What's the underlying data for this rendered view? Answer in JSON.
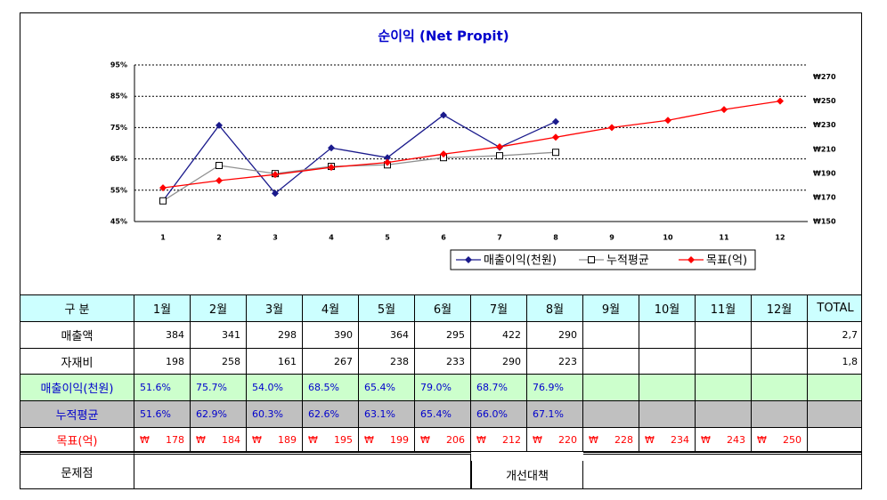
{
  "chart_data": {
    "type": "line",
    "title": "순이익 (Net Propit)",
    "categories": [
      "1",
      "2",
      "3",
      "4",
      "5",
      "6",
      "7",
      "8",
      "9",
      "10",
      "11",
      "12"
    ],
    "ylim": [
      45,
      95
    ],
    "yticks": [
      {
        "value": 45,
        "label": "45%"
      },
      {
        "value": 55,
        "label": "55%"
      },
      {
        "value": 65,
        "label": "65%"
      },
      {
        "value": 75,
        "label": "75%"
      },
      {
        "value": 85,
        "label": "85%"
      },
      {
        "value": 95,
        "label": "95%"
      }
    ],
    "y2lim": [
      150,
      280
    ],
    "y2ticks": [
      {
        "value": 150,
        "label": "₩150"
      },
      {
        "value": 170,
        "label": "₩170"
      },
      {
        "value": 190,
        "label": "₩190"
      },
      {
        "value": 210,
        "label": "₩210"
      },
      {
        "value": 230,
        "label": "₩230"
      },
      {
        "value": 250,
        "label": "₩250"
      },
      {
        "value": 270,
        "label": "₩270"
      }
    ],
    "grid": true,
    "legend": "bottom-right",
    "series": [
      {
        "name": "매출이익(천원)",
        "color": "#1a1a8c",
        "marker": "diamond",
        "values": [
          51.6,
          75.7,
          54.0,
          68.5,
          65.4,
          79.0,
          68.7,
          76.9,
          null,
          null,
          null,
          null
        ]
      },
      {
        "name": "누적평균",
        "color": "#909090",
        "marker": "square",
        "values": [
          51.6,
          62.9,
          60.3,
          62.6,
          63.1,
          65.4,
          66.0,
          67.1,
          null,
          null,
          null,
          null
        ]
      },
      {
        "name": "목표(억)",
        "color": "#ff0000",
        "marker": "diamond",
        "axis": "y2",
        "values": [
          178,
          184,
          189,
          195,
          199,
          206,
          212,
          220,
          228,
          234,
          243,
          250
        ]
      }
    ]
  },
  "table": {
    "header": [
      "구   분",
      "1월",
      "2월",
      "3월",
      "4월",
      "5월",
      "6월",
      "7월",
      "8월",
      "9월",
      "10월",
      "11월",
      "12월",
      "TOTAL"
    ],
    "rows": [
      {
        "label": "매출액",
        "cells": [
          "384",
          "341",
          "298",
          "390",
          "364",
          "295",
          "422",
          "290",
          null,
          null,
          null,
          null,
          "2,7"
        ]
      },
      {
        "label": "자재비",
        "cells": [
          "198",
          "258",
          "161",
          "267",
          "238",
          "233",
          "290",
          "223",
          null,
          null,
          null,
          null,
          "1,8"
        ]
      },
      {
        "label": "매출이익(천원)",
        "cells": [
          "51.6%",
          "75.7%",
          "54.0%",
          "68.5%",
          "65.4%",
          "79.0%",
          "68.7%",
          "76.9%",
          null,
          null,
          null,
          null,
          null
        ]
      },
      {
        "label": "누적평균",
        "cells": [
          "51.6%",
          "62.9%",
          "60.3%",
          "62.6%",
          "63.1%",
          "65.4%",
          "66.0%",
          "67.1%",
          null,
          null,
          null,
          null,
          null
        ]
      },
      {
        "label": "목표(억)",
        "currency": "₩",
        "cells": [
          "178",
          "184",
          "189",
          "195",
          "199",
          "206",
          "212",
          "220",
          "228",
          "234",
          "243",
          "250",
          null
        ]
      }
    ],
    "footer": {
      "problem": "문제점",
      "solution": "개선대책"
    }
  }
}
